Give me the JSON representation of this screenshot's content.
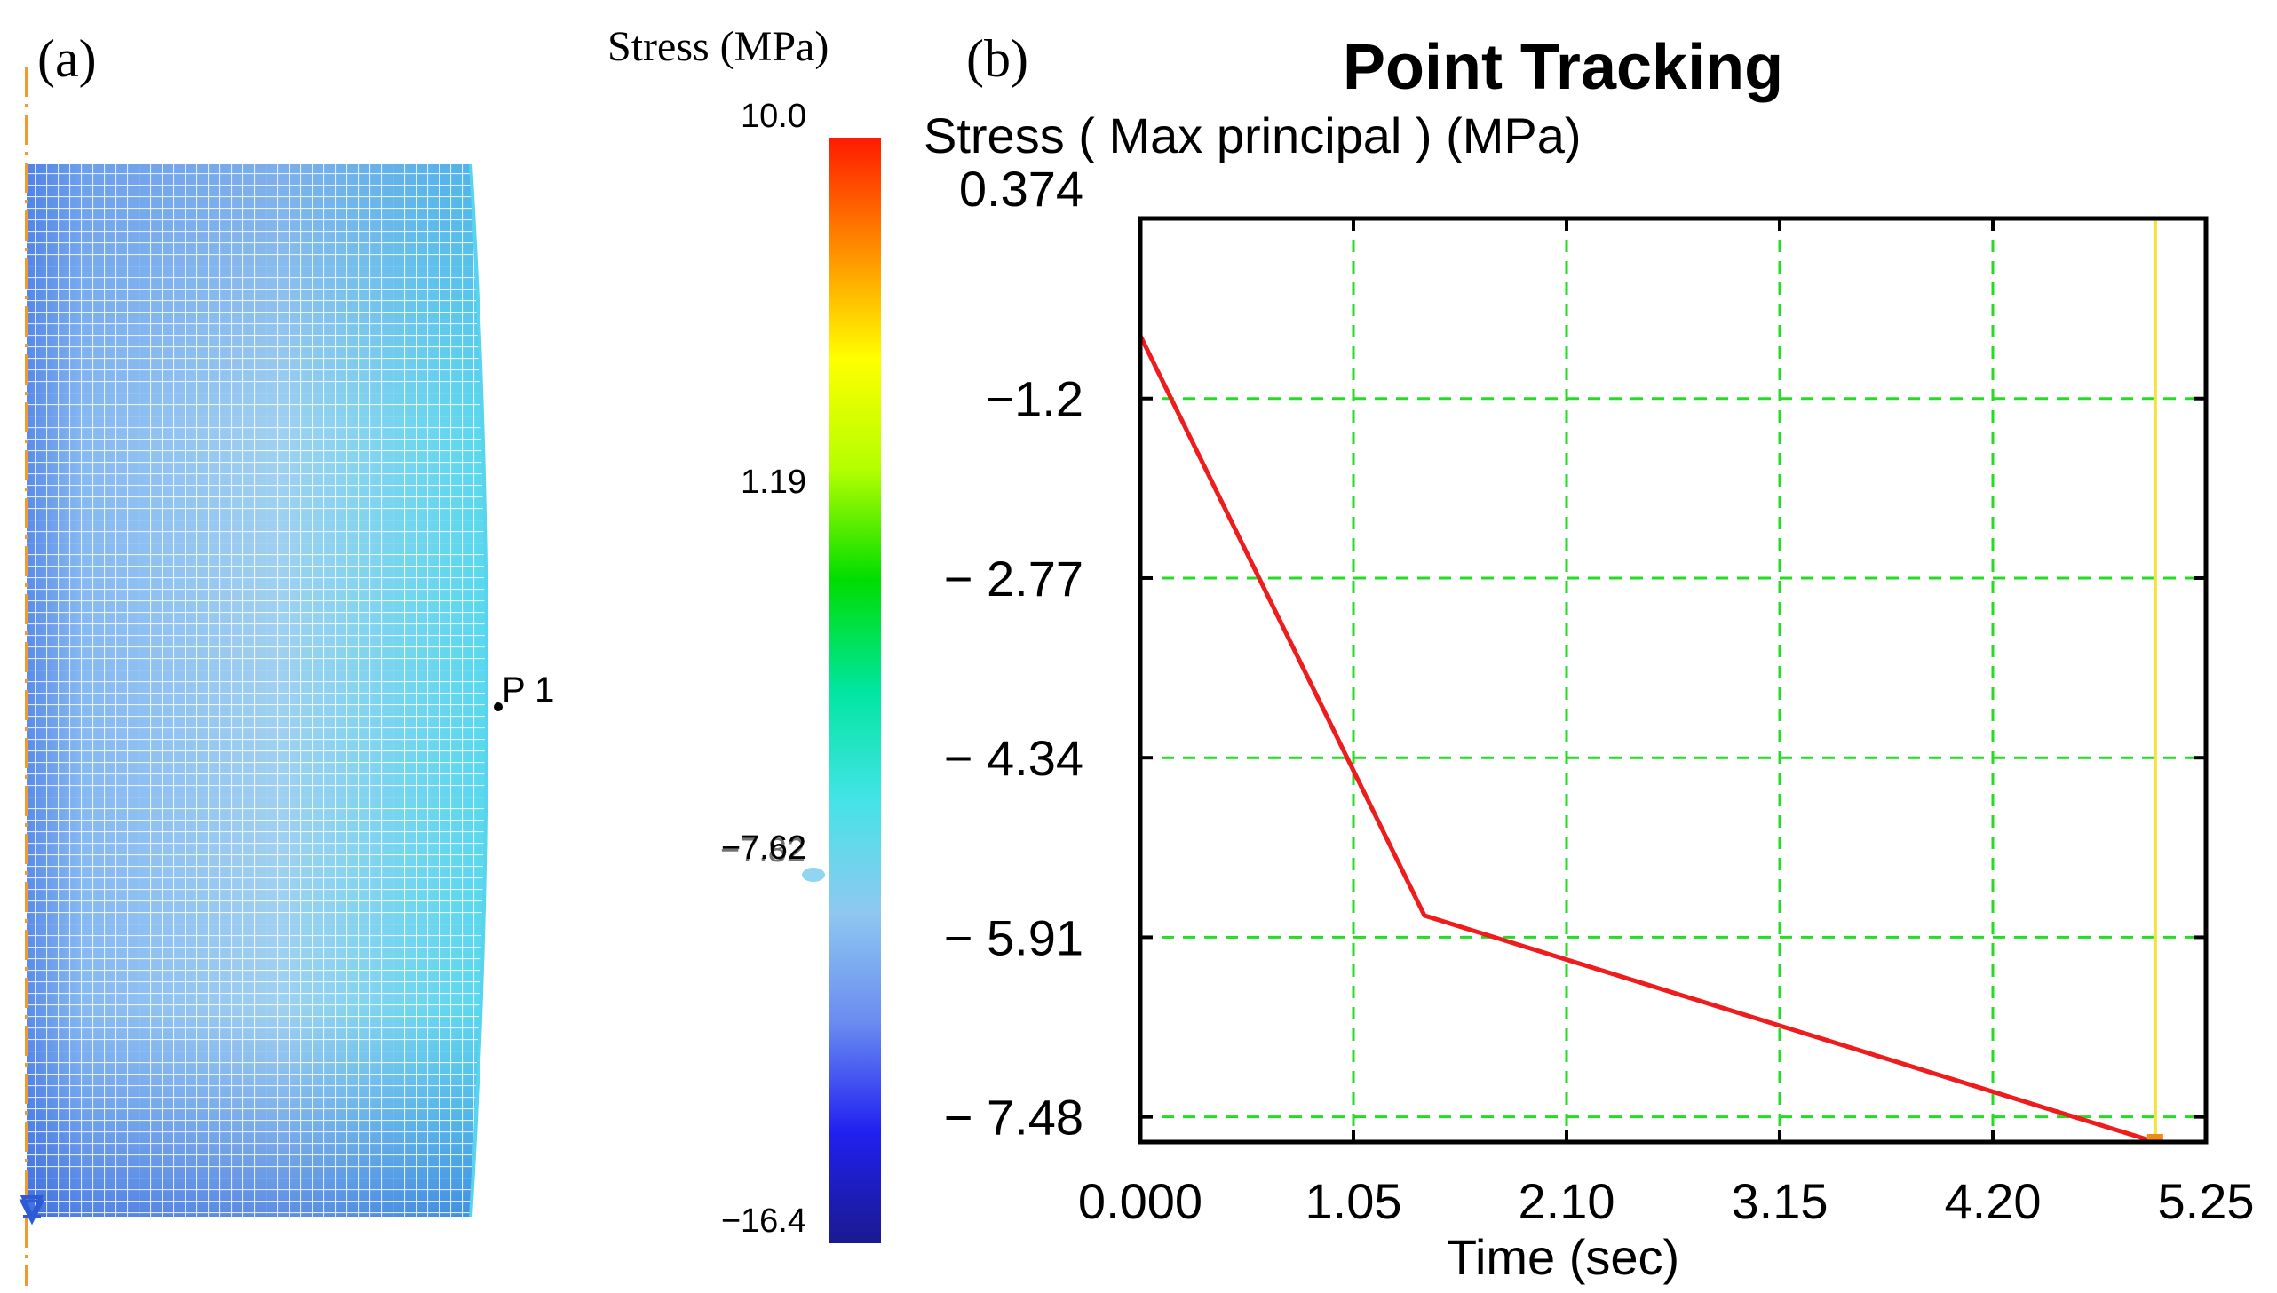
{
  "panel_a": {
    "label": "(a)",
    "legend_title": "Stress (MPa)",
    "colorbar_ticks": [
      "10.0",
      "1.19",
      "−7.62",
      "−16.4"
    ],
    "colorbar_marker": "−7.82",
    "point_label": "P 1",
    "colors": {
      "mesh_outer": "#56d6ee",
      "mesh_inner": "#8fc5f2",
      "mesh_dark": "#4f7fe6",
      "axis_line": "#f29a2e",
      "support": "#2d5bd6"
    },
    "colorbar_colors": [
      "#ff1a00",
      "#ff8c00",
      "#ffff00",
      "#b4ff00",
      "#00dd00",
      "#00e6a0",
      "#45e3e8",
      "#8fc8f0",
      "#6a8cf0",
      "#2020f0",
      "#1a1a90"
    ]
  },
  "panel_b": {
    "label": "(b)"
  },
  "chart_data": {
    "type": "line",
    "title": "Point Tracking",
    "ylabel": "Stress ( Max principal )  (MPa)",
    "xlabel": "Time (sec)",
    "xlim": [
      0,
      5.25
    ],
    "ylim": [
      -7.7,
      0.374
    ],
    "x_ticks": [
      "0.000",
      "1.05",
      "2.10",
      "3.15",
      "4.20",
      "5.25"
    ],
    "x_tick_values": [
      0,
      1.05,
      2.1,
      3.15,
      4.2,
      5.25
    ],
    "y_ticks": [
      "0.374",
      "−1.2",
      "− 2.77",
      "− 4.34",
      "− 5.91",
      "− 7.48"
    ],
    "y_tick_values": [
      0.374,
      -1.2,
      -2.77,
      -4.34,
      -5.91,
      -7.48
    ],
    "grid": true,
    "cursor_time": 5.0,
    "series": [
      {
        "name": "P 1",
        "color": "#ee1c1c",
        "x": [
          0.0,
          1.4,
          5.0
        ],
        "y": [
          -0.65,
          -5.72,
          -7.7
        ]
      }
    ],
    "colors": {
      "grid": "#22dd22",
      "cursor": "#f2e43c",
      "marker": "#f08a18",
      "frame": "#000000"
    }
  }
}
